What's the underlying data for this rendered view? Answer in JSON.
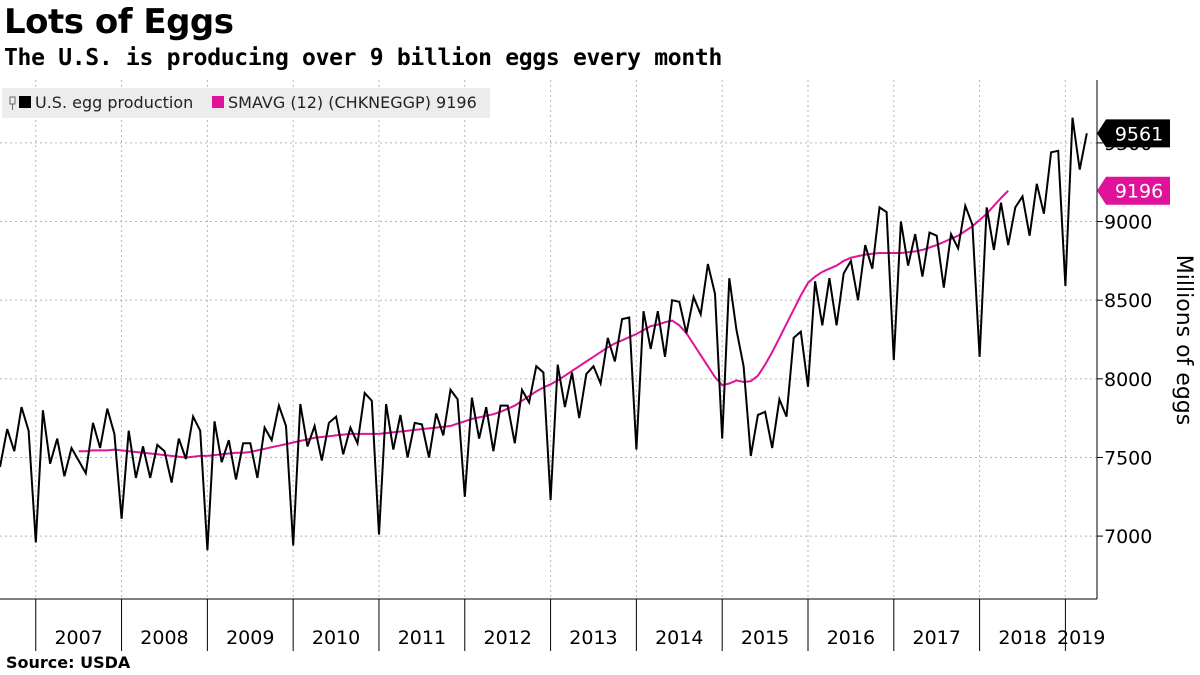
{
  "chart_data": {
    "type": "line",
    "title": "Lots of Eggs",
    "subtitle": "The U.S. is producing over 9 billion eggs every month",
    "ylabel": "Millions of eggs",
    "xlabel": "",
    "ylim": [
      6600,
      9900
    ],
    "yticks": [
      7000,
      7500,
      8000,
      8500,
      9000,
      9500
    ],
    "ytick_labels": [
      "7000",
      "7500",
      "8000",
      "8500",
      "9000",
      "9500"
    ],
    "x_start": "2006-08",
    "x_end": "2019-05",
    "x_frequency": "monthly",
    "year_labels": [
      "2007",
      "2008",
      "2009",
      "2010",
      "2011",
      "2012",
      "2013",
      "2014",
      "2015",
      "2016",
      "2017",
      "2018",
      "2019"
    ],
    "grid": true,
    "legend_position": "top-left",
    "legend": [
      "U.S. egg production",
      "SMAVG (12) (CHKNEGGP) 9196"
    ],
    "series": [
      {
        "name": "U.S. egg production",
        "color": "#000000",
        "start": "2006-08",
        "values": [
          7440,
          7680,
          7540,
          7820,
          7670,
          6960,
          7800,
          7460,
          7620,
          7380,
          7560,
          7480,
          7400,
          7720,
          7560,
          7810,
          7650,
          7110,
          7670,
          7370,
          7570,
          7370,
          7580,
          7540,
          7340,
          7620,
          7490,
          7760,
          7670,
          6910,
          7730,
          7470,
          7610,
          7360,
          7590,
          7590,
          7370,
          7690,
          7610,
          7830,
          7700,
          6940,
          7840,
          7570,
          7700,
          7480,
          7720,
          7760,
          7520,
          7690,
          7590,
          7910,
          7860,
          7010,
          7840,
          7550,
          7770,
          7500,
          7720,
          7710,
          7500,
          7780,
          7640,
          7930,
          7870,
          7250,
          7880,
          7620,
          7820,
          7540,
          7830,
          7830,
          7590,
          7930,
          7850,
          8080,
          8040,
          7230,
          8090,
          7820,
          8040,
          7750,
          8030,
          8080,
          7970,
          8260,
          8110,
          8380,
          8390,
          7550,
          8430,
          8190,
          8430,
          8140,
          8500,
          8490,
          8290,
          8520,
          8410,
          8730,
          8540,
          7620,
          8640,
          8310,
          8080,
          7510,
          7770,
          7790,
          7560,
          7870,
          7760,
          8260,
          8300,
          7950,
          8620,
          8340,
          8640,
          8340,
          8670,
          8750,
          8500,
          8850,
          8700,
          9090,
          9060,
          8120,
          9000,
          8720,
          8920,
          8650,
          8930,
          8910,
          8580,
          8920,
          8830,
          9100,
          8980,
          8140,
          9090,
          8820,
          9120,
          8850,
          9090,
          9160,
          8910,
          9240,
          9050,
          9440,
          9450,
          8590,
          9660,
          9330,
          9561
        ]
      },
      {
        "name": "SMAVG (12) (CHKNEGGP) 9196",
        "color": "#e0129a",
        "start": "2007-07",
        "values": [
          7540,
          7540,
          7545,
          7545,
          7545,
          7550,
          7545,
          7540,
          7535,
          7530,
          7525,
          7520,
          7515,
          7510,
          7505,
          7500,
          7505,
          7510,
          7510,
          7515,
          7520,
          7525,
          7530,
          7530,
          7535,
          7545,
          7555,
          7565,
          7575,
          7585,
          7595,
          7605,
          7615,
          7625,
          7630,
          7635,
          7640,
          7645,
          7650,
          7650,
          7650,
          7650,
          7650,
          7655,
          7660,
          7665,
          7670,
          7675,
          7680,
          7685,
          7690,
          7695,
          7700,
          7715,
          7730,
          7745,
          7755,
          7765,
          7775,
          7790,
          7810,
          7830,
          7860,
          7890,
          7920,
          7945,
          7965,
          7990,
          8020,
          8050,
          8080,
          8110,
          8140,
          8170,
          8200,
          8225,
          8245,
          8265,
          8285,
          8310,
          8335,
          8345,
          8360,
          8370,
          8340,
          8290,
          8220,
          8150,
          8080,
          8010,
          7960,
          7970,
          7990,
          7980,
          7985,
          8020,
          8090,
          8170,
          8260,
          8350,
          8440,
          8530,
          8610,
          8650,
          8680,
          8700,
          8720,
          8750,
          8770,
          8780,
          8790,
          8795,
          8800,
          8800,
          8800,
          8800,
          8805,
          8810,
          8820,
          8835,
          8850,
          8870,
          8890,
          8910,
          8940,
          8970,
          9010,
          9050,
          9100,
          9150,
          9196
        ]
      }
    ],
    "badges": [
      {
        "value": "9561",
        "y": 9561,
        "color": "#000000"
      },
      {
        "value": "9196",
        "y": 9196,
        "color": "#e0129a"
      }
    ]
  },
  "source": "Source:  USDA"
}
